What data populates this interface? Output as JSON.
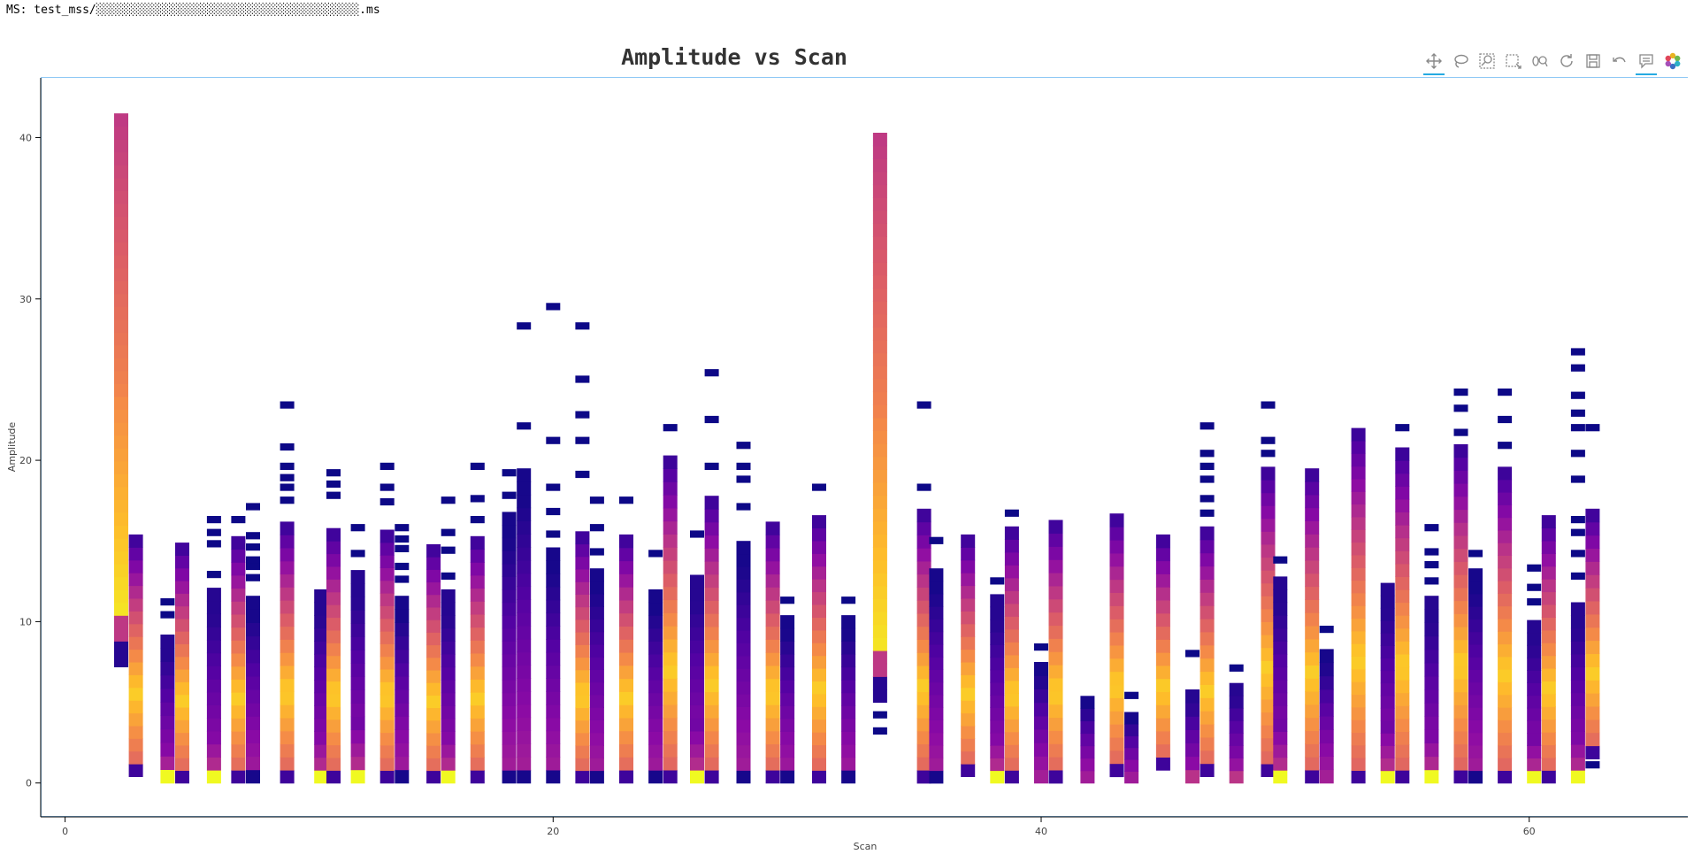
{
  "header": {
    "ms_label": "MS: test_mss/░░░░░░░░░░░░░░░░░░░░░░░░░░░░░░░░░░░░░░.ms"
  },
  "toolbar": {
    "tools": [
      {
        "name": "pan-tool",
        "icon": "move-icon",
        "active": true
      },
      {
        "name": "lasso-select-tool",
        "icon": "lasso-icon",
        "active": false
      },
      {
        "name": "box-zoom-tool",
        "icon": "box-zoom-icon",
        "active": false
      },
      {
        "name": "box-select-tool",
        "icon": "box-select-icon",
        "active": false
      },
      {
        "name": "zoom-tool",
        "icon": "zoom-icon",
        "active": false
      },
      {
        "name": "reset-tool",
        "icon": "reset-icon",
        "active": false
      },
      {
        "name": "save-tool",
        "icon": "save-icon",
        "active": false
      },
      {
        "name": "undo-tool",
        "icon": "undo-icon",
        "active": false
      },
      {
        "name": "hover-tool",
        "icon": "hover-icon",
        "active": true
      },
      {
        "name": "bokeh-logo",
        "icon": "bokeh-logo-icon",
        "active": false
      }
    ]
  },
  "chart_data": {
    "type": "heatmap",
    "title": "Amplitude vs Scan",
    "xlabel": "Scan",
    "ylabel": "Amplitude",
    "xlim": [
      -1,
      66.5
    ],
    "ylim": [
      -2.1,
      43.7
    ],
    "xticks": [
      0,
      20,
      40,
      60
    ],
    "yticks": [
      0,
      10,
      20,
      30,
      40
    ],
    "grid": false,
    "colormap": "plasma",
    "colors": [
      "#0d0887",
      "#5302a3",
      "#8b0aa5",
      "#b83289",
      "#db5c68",
      "#f48849",
      "#febd2a",
      "#f0f921"
    ],
    "bin_height": 0.8,
    "columns": [
      {
        "scan": 2.3,
        "segments": [
          {
            "y0": 7.2,
            "y1": 41.5,
            "profile": "tall"
          }
        ]
      },
      {
        "scan": 2.9,
        "segments": [
          {
            "y0": 0.4,
            "y1": 15.4,
            "profile": "bright_mid"
          }
        ]
      },
      {
        "scan": 4.2,
        "segments": [
          {
            "y0": 0,
            "y1": 9.2,
            "profile": "bright_bottom"
          }
        ],
        "dots": [
          10.2,
          11.0
        ]
      },
      {
        "scan": 4.8,
        "segments": [
          {
            "y0": 0,
            "y1": 14.9,
            "profile": "bright_mid"
          }
        ]
      },
      {
        "scan": 6.1,
        "segments": [
          {
            "y0": 0,
            "y1": 12.1,
            "profile": "bright_bottom"
          }
        ],
        "dots": [
          12.7,
          14.6,
          15.3,
          16.1
        ]
      },
      {
        "scan": 7.1,
        "segments": [
          {
            "y0": 0,
            "y1": 15.3,
            "profile": "bright_mid"
          }
        ],
        "dots": [
          16.1
        ]
      },
      {
        "scan": 7.7,
        "segments": [
          {
            "y0": 0,
            "y1": 11.6,
            "profile": "dim"
          }
        ],
        "dots": [
          12.5,
          13.2,
          13.6,
          14.4,
          15.1,
          16.9
        ]
      },
      {
        "scan": 9.1,
        "segments": [
          {
            "y0": 0,
            "y1": 16.2,
            "profile": "bright_mid"
          }
        ],
        "dots": [
          17.3,
          18.1,
          18.7,
          19.4,
          20.6,
          23.2
        ]
      },
      {
        "scan": 10.5,
        "segments": [
          {
            "y0": 0,
            "y1": 12.0,
            "profile": "bright_bottom"
          }
        ]
      },
      {
        "scan": 11.0,
        "segments": [
          {
            "y0": 0,
            "y1": 15.8,
            "profile": "bright_mid"
          }
        ],
        "dots": [
          17.6,
          18.3,
          19.0
        ]
      },
      {
        "scan": 12.0,
        "segments": [
          {
            "y0": 0,
            "y1": 13.2,
            "profile": "bright_bottom"
          }
        ],
        "dots": [
          14.0,
          15.6
        ]
      },
      {
        "scan": 13.2,
        "segments": [
          {
            "y0": 0,
            "y1": 15.7,
            "profile": "bright_mid"
          }
        ],
        "dots": [
          17.2,
          18.1,
          19.4
        ]
      },
      {
        "scan": 13.8,
        "segments": [
          {
            "y0": 0,
            "y1": 11.6,
            "profile": "dim"
          }
        ],
        "dots": [
          12.4,
          13.2,
          14.3,
          14.9,
          15.6
        ]
      },
      {
        "scan": 15.1,
        "segments": [
          {
            "y0": 0,
            "y1": 14.8,
            "profile": "bright_mid"
          }
        ]
      },
      {
        "scan": 15.7,
        "segments": [
          {
            "y0": 0,
            "y1": 12.0,
            "profile": "bright_bottom"
          }
        ],
        "dots": [
          12.6,
          14.2,
          15.3,
          17.3
        ]
      },
      {
        "scan": 16.9,
        "segments": [
          {
            "y0": 0,
            "y1": 15.3,
            "profile": "bright_mid"
          }
        ],
        "dots": [
          16.1,
          17.4,
          19.4
        ]
      },
      {
        "scan": 18.2,
        "segments": [
          {
            "y0": 0,
            "y1": 16.8,
            "profile": "dim"
          }
        ],
        "dots": [
          17.6,
          19.0
        ]
      },
      {
        "scan": 18.8,
        "segments": [
          {
            "y0": 0,
            "y1": 19.5,
            "profile": "dim"
          }
        ],
        "dots": [
          21.9,
          28.1
        ]
      },
      {
        "scan": 20.0,
        "segments": [
          {
            "y0": 0,
            "y1": 14.6,
            "profile": "dim"
          }
        ],
        "dots": [
          15.2,
          16.6,
          18.1,
          21.0,
          29.3
        ]
      },
      {
        "scan": 21.2,
        "segments": [
          {
            "y0": 0,
            "y1": 15.6,
            "profile": "bright_mid"
          }
        ],
        "dots": [
          18.9,
          21.0,
          22.6,
          24.8,
          28.1
        ]
      },
      {
        "scan": 21.8,
        "segments": [
          {
            "y0": 0,
            "y1": 13.3,
            "profile": "dim"
          }
        ],
        "dots": [
          14.1,
          15.6,
          17.3
        ]
      },
      {
        "scan": 23.0,
        "segments": [
          {
            "y0": 0,
            "y1": 15.4,
            "profile": "bright_mid"
          }
        ],
        "dots": [
          17.3
        ]
      },
      {
        "scan": 24.2,
        "segments": [
          {
            "y0": 0,
            "y1": 12.0,
            "profile": "dim"
          }
        ],
        "dots": [
          14.0
        ]
      },
      {
        "scan": 24.8,
        "segments": [
          {
            "y0": 0,
            "y1": 20.3,
            "profile": "bright_mid"
          }
        ],
        "dots": [
          21.8
        ]
      },
      {
        "scan": 25.9,
        "segments": [
          {
            "y0": 0,
            "y1": 12.9,
            "profile": "bright_bottom"
          }
        ],
        "dots": [
          15.2
        ]
      },
      {
        "scan": 26.5,
        "segments": [
          {
            "y0": 0,
            "y1": 17.8,
            "profile": "bright_mid"
          }
        ],
        "dots": [
          19.4,
          22.3,
          25.2
        ]
      },
      {
        "scan": 27.8,
        "segments": [
          {
            "y0": 0,
            "y1": 15.0,
            "profile": "dim"
          }
        ],
        "dots": [
          16.9,
          18.6,
          19.4,
          20.7
        ]
      },
      {
        "scan": 29.0,
        "segments": [
          {
            "y0": 0,
            "y1": 16.2,
            "profile": "bright_mid"
          }
        ]
      },
      {
        "scan": 29.6,
        "segments": [
          {
            "y0": 0,
            "y1": 10.4,
            "profile": "dim"
          }
        ],
        "dots": [
          11.1
        ]
      },
      {
        "scan": 30.9,
        "segments": [
          {
            "y0": 0,
            "y1": 16.6,
            "profile": "bright_mid"
          }
        ],
        "dots": [
          18.1
        ]
      },
      {
        "scan": 32.1,
        "segments": [
          {
            "y0": 0,
            "y1": 10.4,
            "profile": "dim"
          }
        ],
        "dots": [
          11.1
        ]
      },
      {
        "scan": 33.4,
        "segments": [
          {
            "y0": 5.0,
            "y1": 40.3,
            "profile": "tall"
          }
        ],
        "dots": [
          3.0,
          4.0
        ]
      },
      {
        "scan": 35.2,
        "segments": [
          {
            "y0": 0,
            "y1": 17.0,
            "profile": "bright_mid"
          }
        ],
        "dots": [
          18.1,
          23.2
        ]
      },
      {
        "scan": 35.7,
        "segments": [
          {
            "y0": 0,
            "y1": 13.3,
            "profile": "dim"
          }
        ],
        "dots": [
          14.8
        ]
      },
      {
        "scan": 37.0,
        "segments": [
          {
            "y0": 0.4,
            "y1": 15.4,
            "profile": "bright_mid"
          }
        ]
      },
      {
        "scan": 38.2,
        "segments": [
          {
            "y0": 0,
            "y1": 11.7,
            "profile": "bright_bottom"
          }
        ],
        "dots": [
          12.3
        ]
      },
      {
        "scan": 38.8,
        "segments": [
          {
            "y0": 0,
            "y1": 15.9,
            "profile": "bright_mid"
          }
        ],
        "dots": [
          16.5
        ]
      },
      {
        "scan": 40.0,
        "segments": [
          {
            "y0": 0,
            "y1": 7.5,
            "profile": "dim"
          }
        ],
        "dots": [
          8.2
        ]
      },
      {
        "scan": 40.6,
        "segments": [
          {
            "y0": 0,
            "y1": 16.3,
            "profile": "bright_mid"
          }
        ]
      },
      {
        "scan": 41.9,
        "segments": [
          {
            "y0": 0,
            "y1": 5.4,
            "profile": "dim"
          }
        ]
      },
      {
        "scan": 43.1,
        "segments": [
          {
            "y0": 0.4,
            "y1": 16.7,
            "profile": "bright_mid"
          }
        ]
      },
      {
        "scan": 43.7,
        "segments": [
          {
            "y0": 0,
            "y1": 4.4,
            "profile": "dim"
          }
        ],
        "dots": [
          5.2
        ]
      },
      {
        "scan": 45.0,
        "segments": [
          {
            "y0": 0.8,
            "y1": 15.4,
            "profile": "bright_mid"
          }
        ]
      },
      {
        "scan": 46.2,
        "segments": [
          {
            "y0": 0,
            "y1": 5.8,
            "profile": "bright_bottom"
          }
        ],
        "dots": [
          7.8
        ]
      },
      {
        "scan": 46.8,
        "segments": [
          {
            "y0": 0.4,
            "y1": 15.9,
            "profile": "bright_mid"
          }
        ],
        "dots": [
          16.5,
          17.4,
          18.6,
          19.4,
          20.2,
          21.9
        ]
      },
      {
        "scan": 48.0,
        "segments": [
          {
            "y0": 0,
            "y1": 6.2,
            "profile": "bright_bottom"
          }
        ],
        "dots": [
          6.9
        ]
      },
      {
        "scan": 49.3,
        "segments": [
          {
            "y0": 0.4,
            "y1": 19.6,
            "profile": "bright_mid"
          }
        ],
        "dots": [
          20.2,
          21.0,
          23.2
        ]
      },
      {
        "scan": 49.8,
        "segments": [
          {
            "y0": 0,
            "y1": 12.8,
            "profile": "bright_bottom"
          }
        ],
        "dots": [
          13.6
        ]
      },
      {
        "scan": 51.1,
        "segments": [
          {
            "y0": 0,
            "y1": 19.5,
            "profile": "bright_mid"
          }
        ]
      },
      {
        "scan": 51.7,
        "segments": [
          {
            "y0": 0,
            "y1": 8.3,
            "profile": "dim"
          }
        ],
        "dots": [
          9.3
        ]
      },
      {
        "scan": 53.0,
        "segments": [
          {
            "y0": 0,
            "y1": 22.0,
            "profile": "bright_mid"
          }
        ]
      },
      {
        "scan": 54.2,
        "segments": [
          {
            "y0": 0,
            "y1": 12.4,
            "profile": "bright_bottom"
          }
        ]
      },
      {
        "scan": 54.8,
        "segments": [
          {
            "y0": 0,
            "y1": 20.8,
            "profile": "bright_mid"
          }
        ],
        "dots": [
          21.8
        ]
      },
      {
        "scan": 56.0,
        "segments": [
          {
            "y0": 0,
            "y1": 11.6,
            "profile": "bright_bottom"
          }
        ],
        "dots": [
          12.3,
          13.3,
          14.1,
          15.6
        ]
      },
      {
        "scan": 57.2,
        "segments": [
          {
            "y0": 0,
            "y1": 21.0,
            "profile": "bright_mid"
          }
        ],
        "dots": [
          21.5,
          23.0,
          24.0
        ]
      },
      {
        "scan": 57.8,
        "segments": [
          {
            "y0": 0,
            "y1": 13.3,
            "profile": "dim"
          }
        ],
        "dots": [
          14.0
        ]
      },
      {
        "scan": 59.0,
        "segments": [
          {
            "y0": 0,
            "y1": 19.6,
            "profile": "bright_mid"
          }
        ],
        "dots": [
          20.7,
          22.3,
          24.0
        ]
      },
      {
        "scan": 60.2,
        "segments": [
          {
            "y0": 0,
            "y1": 10.1,
            "profile": "bright_bottom"
          }
        ],
        "dots": [
          11.0,
          11.9,
          13.1
        ]
      },
      {
        "scan": 60.8,
        "segments": [
          {
            "y0": 0,
            "y1": 16.6,
            "profile": "bright_mid"
          }
        ]
      },
      {
        "scan": 62.0,
        "segments": [
          {
            "y0": 0,
            "y1": 11.2,
            "profile": "bright_bottom"
          }
        ],
        "dots": [
          12.6,
          14.0,
          15.3,
          16.1,
          18.6,
          20.2,
          21.8,
          22.7,
          23.8,
          25.5,
          26.5
        ]
      },
      {
        "scan": 62.6,
        "segments": [
          {
            "y0": 1.5,
            "y1": 17.0,
            "profile": "bright_mid"
          }
        ],
        "dots": [
          0.9,
          21.8
        ]
      }
    ]
  }
}
